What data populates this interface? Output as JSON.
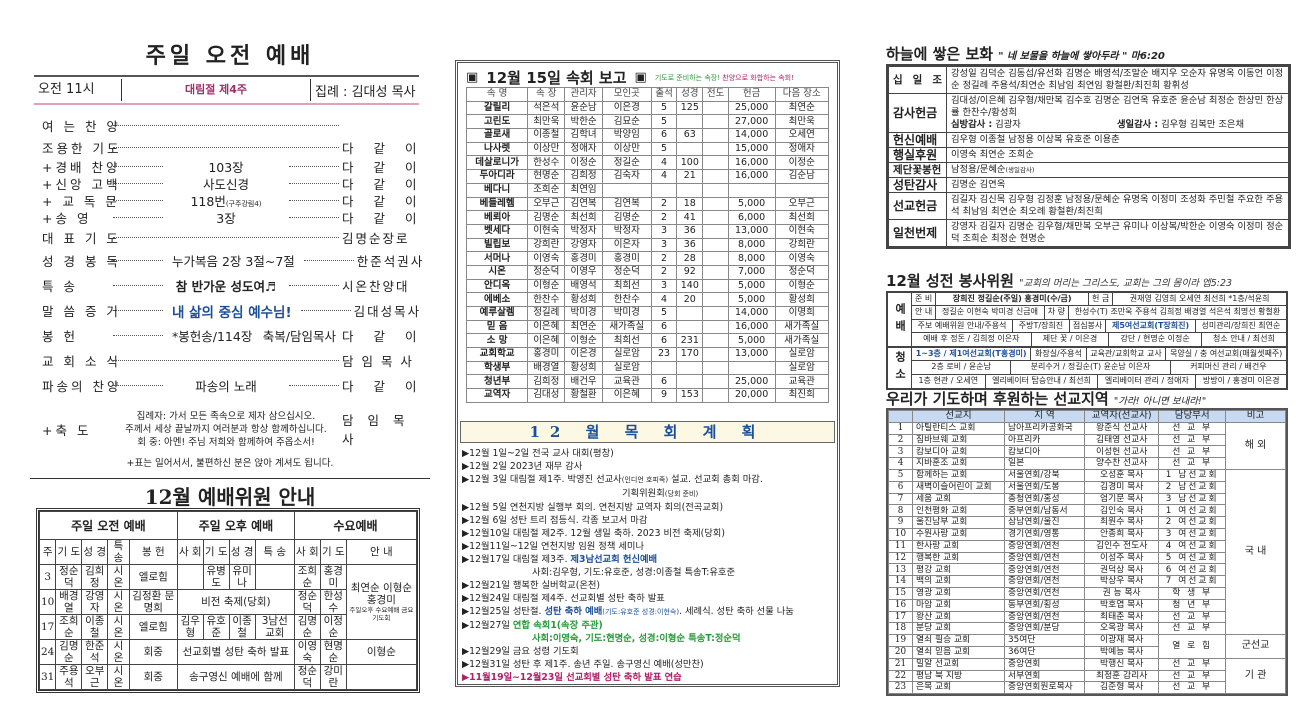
{
  "morning_service": {
    "title": "주일 오전 예배",
    "time": "오전 11시",
    "week": "대림절 제4주",
    "leader": "집례 : 김대성 목사",
    "order": [
      {
        "label": "여 는 찬 양",
        "mid": "",
        "right": ""
      },
      {
        "label": "조용한 기도",
        "mid": "",
        "right": "다 같 이"
      },
      {
        "label": "+경배 찬양",
        "mid": "103장",
        "right": "다 같 이"
      },
      {
        "label": "+신앙 고백",
        "mid": "사도신경",
        "right": "다 같 이"
      },
      {
        "label": "+ 교 독 문",
        "mid": "118번",
        "mid_note": "(구주강림4)",
        "right": "다 같 이"
      },
      {
        "label": "+송 영",
        "mid": "3장",
        "right": "다 같 이"
      },
      {
        "label": "대 표 기 도",
        "mid": "",
        "right": "김명순장로"
      },
      {
        "label": "성 경 봉 독",
        "mid": "누가복음 2장 3절~7절",
        "right": "한준석권사"
      },
      {
        "label": "특 송",
        "mid": "참 반가운 성도여♬",
        "right": "시온찬양대"
      },
      {
        "label": "말 씀 증 거",
        "mid": "내 삶의 중심 예수님!",
        "right": "김대성목사"
      },
      {
        "label": "봉 헌",
        "mid": "*봉헌송/114장",
        "mid2": "축복/담임목사",
        "right": "다 같 이"
      },
      {
        "label": "교 회 소 식",
        "mid": "",
        "right": "담 임 목 사"
      },
      {
        "label": "파송의 찬양",
        "mid": "파송의 노래",
        "right": "다 같 이"
      }
    ],
    "benediction": {
      "label": "+축 도",
      "lines": [
        "집례자: 가서 모든 족속으로 제자 삼으십시오.",
        "주께서 세상 끝날까지 여러분과 항상 함께하십니다.",
        "회 중: 아멘! 주님 저희와 함께하여 주옵소서!"
      ],
      "right": "담 임 목 사"
    },
    "note": "+표는 일어서서, 불편하신 분은 앉아 계셔도 됩니다."
  },
  "worship_committee": {
    "title": "12월 예배위원 안내",
    "groups": [
      "주일 오전 예배",
      "주일 오후 예배",
      "수요예배"
    ],
    "headers": [
      "주",
      "기 도",
      "성 경",
      "특 송",
      "봉 헌",
      "사 회",
      "기 도",
      "성 경",
      "특 송",
      "사 회",
      "기 도",
      "안 내"
    ],
    "rows": [
      {
        "week": "3",
        "am": [
          "정순덕",
          "김희정",
          "시온",
          "엘로힘"
        ],
        "pm": [
          "",
          "유병도",
          "유미나",
          ""
        ],
        "wed": [
          "조희순",
          "홍경미"
        ]
      },
      {
        "week": "10",
        "am": [
          "배경열",
          "강영자",
          "시온",
          "김정환 문명희"
        ],
        "pm_merged": "비전 축제(당회)",
        "wed": [
          "정순덕",
          "한성수"
        ]
      },
      {
        "week": "17",
        "am": [
          "조희순",
          "이종철",
          "시온",
          "엘로힘"
        ],
        "pm": [
          "김우형",
          "유호준",
          "이종철",
          "3남선 교회"
        ],
        "wed": [
          "김명순",
          "이정순"
        ]
      },
      {
        "week": "24",
        "am": [
          "김명순",
          "한준석",
          "시온",
          "회중"
        ],
        "pm_merged": "선교회별 성탄 축하 발표",
        "wed": [
          "이영숙",
          "현명순"
        ],
        "guide": "이형순"
      },
      {
        "week": "31",
        "am": [
          "주용석",
          "오부근",
          "시온",
          "회중"
        ],
        "pm_merged": "송구영신 예배에 함께",
        "wed": [
          "정순덕",
          "강미란"
        ],
        "guide": ""
      }
    ],
    "guide_merged": "최연순 이형순 홍경미",
    "guide_note": "주일오후 수요예배 금요기도회"
  },
  "cell_report": {
    "title": "12월 15일 속회 보고",
    "tagline_green": "기도로 준비하는 속장!",
    "tagline_red": "찬양으로 화합하는 속회!",
    "headers": [
      "속 명",
      "속 장",
      "관리자",
      "모인곳",
      "출석",
      "성경",
      "전도",
      "헌금",
      "다음 장소"
    ],
    "rows": [
      [
        "갈릴리",
        "석은석",
        "윤순남",
        "이은경",
        "5",
        "125",
        "",
        "25,000",
        "최연순"
      ],
      [
        "고린도",
        "최만욱",
        "박한순",
        "김묘순",
        "5",
        "",
        "",
        "27,000",
        "최만욱"
      ],
      [
        "골로새",
        "이종철",
        "김학녀",
        "박양임",
        "6",
        "63",
        "",
        "14,000",
        "오세연"
      ],
      [
        "나사렛",
        "이상만",
        "정애자",
        "이상만",
        "5",
        "",
        "",
        "15,000",
        "정애자"
      ],
      [
        "데살로니가",
        "한성수",
        "이정순",
        "정길순",
        "4",
        "100",
        "",
        "16,000",
        "이정순"
      ],
      [
        "두아디라",
        "현명순",
        "김희정",
        "김숙자",
        "4",
        "21",
        "",
        "16,000",
        "김순남"
      ],
      [
        "베다니",
        "조희순",
        "최연임",
        "",
        "",
        "",
        "",
        "",
        ""
      ],
      [
        "베들레헴",
        "오부근",
        "김연복",
        "김연복",
        "2",
        "18",
        "",
        "5,000",
        "오부근"
      ],
      [
        "베뢰아",
        "김명순",
        "최선희",
        "김명순",
        "2",
        "41",
        "",
        "6,000",
        "최선희"
      ],
      [
        "벳세다",
        "이현숙",
        "박정자",
        "박정자",
        "3",
        "36",
        "",
        "13,000",
        "이현숙"
      ],
      [
        "빌립보",
        "강희란",
        "강영자",
        "이은자",
        "3",
        "36",
        "",
        "8,000",
        "강희란"
      ],
      [
        "서머나",
        "이영숙",
        "홍경미",
        "홍경미",
        "2",
        "28",
        "",
        "8,000",
        "이영숙"
      ],
      [
        "시온",
        "정순덕",
        "이영우",
        "정순덕",
        "2",
        "92",
        "",
        "7,000",
        "정순덕"
      ],
      [
        "안디옥",
        "이형순",
        "배영석",
        "최희선",
        "3",
        "140",
        "",
        "5,000",
        "이형순"
      ],
      [
        "에베소",
        "한찬수",
        "황성희",
        "한찬수",
        "4",
        "20",
        "",
        "5,000",
        "황성희"
      ],
      [
        "예루살렘",
        "정길례",
        "박미경",
        "박미경",
        "5",
        "",
        "",
        "14,000",
        "이명희"
      ],
      [
        "믿 음",
        "이은혜",
        "최연순",
        "새가족실",
        "6",
        "",
        "",
        "16,000",
        "새가족실"
      ],
      [
        "소 망",
        "이은혜",
        "이형순",
        "최희선",
        "6",
        "231",
        "",
        "5,000",
        "새가족실"
      ],
      [
        "교회학교",
        "홍경미",
        "이은경",
        "실로암",
        "23",
        "170",
        "",
        "13,000",
        "실로암"
      ],
      [
        "학생부",
        "배경열",
        "황성희",
        "실로암",
        "",
        "",
        "",
        "",
        "실로암"
      ],
      [
        "청년부",
        "김희정",
        "배건우",
        "교육관",
        "6",
        "",
        "",
        "25,000",
        "교육관"
      ],
      [
        "교역자",
        "김대성",
        "황철환",
        "이은혜",
        "9",
        "153",
        "",
        "20,000",
        "최진희"
      ]
    ]
  },
  "pastoral_plan": {
    "title": "12 월 목 회 계 획",
    "items": [
      {
        "parts": [
          {
            "t": "▶12월 1일~2일 전국 교사 대회(평창)"
          }
        ]
      },
      {
        "parts": [
          {
            "t": "▶12월 2일 2023년 재무 감사"
          }
        ]
      },
      {
        "parts": [
          {
            "t": "▶12월 3일 대림절 제1주. 박영진 선교사"
          },
          {
            "t": "(인디언 호피족)",
            "s": 1
          },
          {
            "t": " 설교. 선교회 총회 마감."
          }
        ],
        "sub": [
          {
            "t": "기획위원회"
          },
          {
            "t": "(당회 준비)",
            "s": 1
          }
        ]
      },
      {
        "parts": [
          {
            "t": "▶12월 5일 연천지방 실행부 회의. 연천지방 교역자 회의(전곡교회)"
          }
        ]
      },
      {
        "parts": [
          {
            "t": "▶12월 6일 성탄 트리 점등식. 각종 보고서 마감"
          }
        ]
      },
      {
        "parts": [
          {
            "t": "▶12월10일 대림절 제2주. 12월 생일 축하. 2023 비전 축제(당회)"
          }
        ]
      },
      {
        "parts": [
          {
            "t": "▶12월11일~12일 연천지방 임원 정책 세미나"
          }
        ]
      },
      {
        "parts": [
          {
            "t": "▶12월17일 대림절 제3주. "
          },
          {
            "t": "제3남선교회 헌신예배",
            "c": "#1c4f9a"
          }
        ],
        "sub": [
          {
            "t": "사회:김우형, 기도:유호준, 성경:이종철 특송T:유호준"
          }
        ]
      },
      {
        "parts": [
          {
            "t": "▶12월21일 행복한 실버학교(온천)"
          }
        ]
      },
      {
        "parts": [
          {
            "t": "▶12월24일 대림절 제4주. 선교회별 성탄 축하 발표"
          }
        ]
      },
      {
        "parts": [
          {
            "t": "▶12월25일 성탄절. "
          },
          {
            "t": "성탄 축하 예배",
            "c": "#1c4f9a"
          },
          {
            "t": "(기도:유호준 성경:이현숙)",
            "s": 1,
            "c": "#1c4f9a"
          },
          {
            "t": ". 세례식. 성탄 축하 선물 나눔"
          }
        ]
      },
      {
        "parts": [
          {
            "t": "▶12월27일 "
          },
          {
            "t": "연합 속회1(속장 주관)",
            "c": "#2a9a3a"
          }
        ],
        "sub": [
          {
            "t": "사회:이영숙, 기도:현명순, 성경:이형순 특송T:정순덕",
            "c": "#2a9a3a"
          }
        ]
      },
      {
        "parts": [
          {
            "t": "▶12월29일 금요 성령 기도회"
          }
        ]
      },
      {
        "parts": [
          {
            "t": "▶12월31일 성탄 후 제1주. 송년 주일. 송구영신 예배(성만찬)"
          }
        ]
      },
      {
        "parts": [
          {
            "t": "▶11월19일~12월23일 선교회별 성탄 축하 발표 연습",
            "c": "#b0206a"
          }
        ]
      }
    ]
  },
  "offerings": {
    "title": "하늘에 쌓은 보화",
    "verse": "\" 네 보물을 하늘에 쌓아두라 \" 마6:20",
    "rows": [
      {
        "label": "십 일 조",
        "text": "강성일 김덕순 김동섭/유선화 김명순 배영석/조말순 배지우 오순자 유명옥 이동언 이정순 정길례 주용석/최연순 최남임 최연임 황철환/최진희 황휘성"
      },
      {
        "label": "감사헌금",
        "text": "김대성/이은혜 김우형/채만복 김수호 김명순 김연옥 유호준 윤순남 최정순 한상민 한상률 한찬수/황성희",
        "visit_label": "심방감사 :",
        "visit": "김광자",
        "bday_label": "생일감사 :",
        "bday": "김우형 김복만 조은채"
      },
      {
        "label": "헌신예배",
        "text": "김우형 이종철 남정용 이상복 유호준 이용춘"
      },
      {
        "label": "행실후원",
        "text": "이영숙 최연순 조희순"
      },
      {
        "label": "제단꽃봉헌",
        "text": "남정용/문혜순",
        "note": "(생일감사)"
      },
      {
        "label": "성탄감사",
        "text": "김명순 김연옥"
      },
      {
        "label": "선교헌금",
        "text": "김길자 김신목 김우형 김정훈 남정용/문혜순 유명옥 이정미 조성화 주민철 주요한 주용석 최남임 최연순 최오례 황철환/최진희"
      },
      {
        "label": "일천번제",
        "text": "강영자 김길자 김명순 김우형/채만복 오부근 유미나 이상복/박한순 이영숙 이정미 정순덕 조희순 최정순 현명순"
      }
    ]
  },
  "volunteers": {
    "title": "12월 성전 봉사위원",
    "verse": "\"교회의 머리는 그리스도, 교회는 그의 몸이라 엡5:23",
    "groups": [
      {
        "label": "예배",
        "rows": [
          [
            {
              "t": "준 비"
            },
            {
              "t": "장희진 정길순(주일) 홍경미(수/금)",
              "b": 1
            },
            {
              "t": "헌 금"
            },
            {
              "t": "권재영 김영희 오세연 최선희 *1층/석윤희"
            }
          ],
          [
            {
              "t": "안 내"
            },
            {
              "t": "정길순 이현숙 박미경 신금애"
            },
            {
              "t": "차 량"
            },
            {
              "t": "한성수(T) 조만욱 주용석 김희정 배경열 석은석 최명선 황철환"
            }
          ],
          [
            {
              "t": "주보 예배위원 안내/주용석"
            },
            {
              "t": "주방T/장희진"
            },
            {
              "t": "점심봉사"
            },
            {
              "t": "제5여선교회(T장희진)",
              "blue": 1
            },
            {
              "t": "성미관리/장희진 최연순"
            }
          ],
          [
            {
              "t": "예배 후 정돈 / 김희정 이은자"
            },
            {
              "t": "제단 꽃 / 이은경"
            },
            {
              "t": "강단 / 현명순 이정순"
            },
            {
              "t": "청소 안내 / 최선희"
            }
          ]
        ]
      },
      {
        "label": "청소",
        "rows": [
          [
            {
              "t": "1~3층 / 제1여선교회(T홍경미)",
              "blue": 1
            },
            {
              "t": "화장실/주용석"
            },
            {
              "t": "교육관/교회학교 교사"
            },
            {
              "t": "목양실 / 충 여선교회(매월셋째주)"
            }
          ],
          [
            {
              "t": "2층 로비 / 윤순남"
            },
            {
              "t": "분리수거 / 정길순(T) 윤순남 이은자"
            },
            {
              "t": "커피머신 관리 / 배건우"
            }
          ],
          [
            {
              "t": "1층 현관 / 오세연"
            },
            {
              "t": "엘리베이터 탑승안내 / 최선희"
            },
            {
              "t": "엘리베이터 관리 / 정애자"
            },
            {
              "t": "방방이 / 홍경미 이은경"
            }
          ]
        ]
      }
    ]
  },
  "missions": {
    "title": "우리가 기도하며 후원하는 선교지역",
    "verse": "\"가라! 아니면 보내라!\"",
    "headers": [
      "",
      "선교지",
      "지 역",
      "교역자(선교사)",
      "담당부서",
      "비고"
    ],
    "rows": [
      [
        "1",
        "아틸란티스 교회",
        "남아프리카공화국",
        "왕준식 선교사",
        "선 교 부"
      ],
      [
        "2",
        "짐바브웨 교회",
        "아프리카",
        "김태영 선교사",
        "선 교 부"
      ],
      [
        "3",
        "캄보디아 교회",
        "캄보디아",
        "이성헌 선교사",
        "선 교 부"
      ],
      [
        "4",
        "지바훈조 교회",
        "일본",
        "양수찬 선교사",
        "선 교 부"
      ],
      [
        "5",
        "함께하는 교회",
        "서울연회/강북",
        "오성훈 목사",
        "1 남선교회"
      ],
      [
        "6",
        "새벽이슬어린이 교회",
        "서울연회/도봉",
        "김경미 목사",
        "2 남선교회"
      ],
      [
        "7",
        "세움 교회",
        "충청연회/홍성",
        "엄기문 목사",
        "3 남선교회"
      ],
      [
        "8",
        "인천평화 교회",
        "중부연회/남동서",
        "김인숙 목사",
        "1 여선교회"
      ],
      [
        "9",
        "울진남부 교회",
        "삼남연회/울진",
        "최원수 목사",
        "2 여선교회"
      ],
      [
        "10",
        "수원사랑 교회",
        "경기연회/영통",
        "안종희 목사",
        "3 여선교회"
      ],
      [
        "11",
        "한사랑 교회",
        "중앙연회/연천",
        "김인수 전도사",
        "4 여선교회"
      ],
      [
        "12",
        "행복한 교회",
        "중앙연회/연천",
        "이성주 목사",
        "5 여선교회"
      ],
      [
        "13",
        "평강 교회",
        "중앙연회/연천",
        "권덕상 목사",
        "6 여선교회"
      ],
      [
        "14",
        "백의 교회",
        "중앙연회/연천",
        "박상우 목사",
        "7 여선교회"
      ],
      [
        "15",
        "영광 교회",
        "중앙연회/연천",
        "권 능 목사",
        "학 생 부"
      ],
      [
        "16",
        "마암 교회",
        "동부연회/횡성",
        "박호엽 목사",
        "청 년 부"
      ],
      [
        "17",
        "왕산 교회",
        "중앙연회/연천",
        "최태춘 목사",
        "선 교 부"
      ],
      [
        "18",
        "분당 교회",
        "중앙연회/분당",
        "오옥광 목사",
        "선 교 부"
      ],
      [
        "19",
        "열쇠 필승 교회",
        "35여단",
        "이광재 목사",
        "열 로 힘"
      ],
      [
        "20",
        "열쇠 믿음 교회",
        "36여단",
        "박예능 목사",
        ""
      ],
      [
        "21",
        "밀알 선교회",
        "중앙연회",
        "박행신 목사",
        "선 교 부"
      ],
      [
        "22",
        "평남 북 지방",
        "서부연회",
        "최정훈 감리사",
        "선 교 부"
      ],
      [
        "23",
        "은목 교회",
        "중앙연회원로목사",
        "김준형 목사",
        "선 교 부"
      ]
    ],
    "groups": [
      {
        "label": "해 외",
        "from": 1,
        "to": 4
      },
      {
        "label": "국 내",
        "from": 5,
        "to": 18
      },
      {
        "label": "군선교",
        "from": 19,
        "to": 20
      },
      {
        "label": "기 관",
        "from": 21,
        "to": 23
      }
    ]
  },
  "colors": {
    "blue": "#1c4f9a",
    "green": "#2a9a3a",
    "magenta": "#b0206a",
    "header_blue": "#c8daf2",
    "plan_bar": "#fdf8e4"
  }
}
